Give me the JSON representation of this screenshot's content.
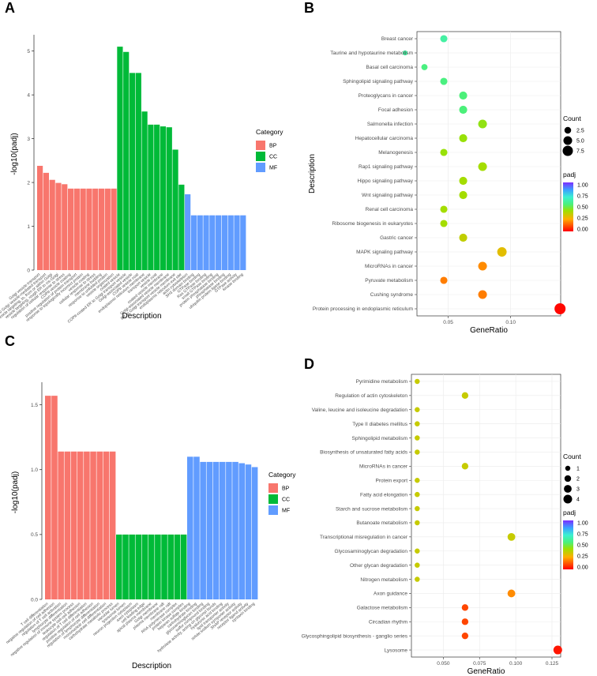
{
  "chart_data": [
    {
      "panel": "A",
      "type": "bar",
      "xlabel": "Description",
      "ylabel": "-log10(padj)",
      "ylim": [
        0,
        5.3
      ],
      "yticks": [
        0,
        1,
        2,
        3,
        4,
        5
      ],
      "legend": {
        "title": "Category",
        "position": "right",
        "entries": [
          {
            "name": "BP",
            "color": "#f8766d"
          },
          {
            "name": "CC",
            "color": "#00ba38"
          },
          {
            "name": "MF",
            "color": "#619cff"
          }
        ]
      },
      "bars": [
        {
          "label": "Golgi vesicle transport",
          "value": 2.38,
          "category": "BP"
        },
        {
          "label": "ER to Golgi vesicle-mediated transport",
          "value": 2.22,
          "category": "BP"
        },
        {
          "label": "vesicle targeting, to, from or within Golgi",
          "value": 2.06,
          "category": "BP"
        },
        {
          "label": "vesicle targeting, rough ER to cis-Golgi",
          "value": 1.99,
          "category": "BP"
        },
        {
          "label": "regulation of cellular response to stress",
          "value": 1.96,
          "category": "BP"
        },
        {
          "label": "COPII vesicle coating",
          "value": 1.86,
          "category": "BP"
        },
        {
          "label": "positive regulation of protein transport",
          "value": 1.86,
          "category": "BP"
        },
        {
          "label": "response to topologically incorrect protein",
          "value": 1.86,
          "category": "BP"
        },
        {
          "label": "vesicle coating",
          "value": 1.86,
          "category": "BP"
        },
        {
          "label": "cellular response to stress",
          "value": 1.86,
          "category": "BP"
        },
        {
          "label": "membrane budding",
          "value": 1.86,
          "category": "BP"
        },
        {
          "label": "response to unfolded protein",
          "value": 1.86,
          "category": "BP"
        },
        {
          "label": "vesicle organization",
          "value": 1.86,
          "category": "BP"
        },
        {
          "label": "coated vesicle",
          "value": 5.1,
          "category": "CC"
        },
        {
          "label": "COPII-coated ER to Golgi transport vesicle",
          "value": 4.98,
          "category": "CC"
        },
        {
          "label": "Golgi-associated vesicle",
          "value": 4.5,
          "category": "CC"
        },
        {
          "label": "COPII vesicle coat",
          "value": 4.5,
          "category": "CC"
        },
        {
          "label": "endoplasmic reticulum membrane",
          "value": 3.62,
          "category": "CC"
        },
        {
          "label": "transport vesicle",
          "value": 3.32,
          "category": "CC"
        },
        {
          "label": "vesicle coat",
          "value": 3.32,
          "category": "CC"
        },
        {
          "label": "coated vesicle membrane",
          "value": 3.28,
          "category": "CC"
        },
        {
          "label": "Golgi-associated vesicle membrane",
          "value": 3.26,
          "category": "CC"
        },
        {
          "label": "ER to Golgi transport vesicle membrane",
          "value": 2.75,
          "category": "CC"
        },
        {
          "label": "endoplasmic reticulum exit site",
          "value": 1.95,
          "category": "CC"
        },
        {
          "label": "actin cytoskeleton",
          "value": 1.73,
          "category": "MF"
        },
        {
          "label": "SH3 domain binding",
          "value": 1.25,
          "category": "MF"
        },
        {
          "label": "GTPase binding",
          "value": 1.25,
          "category": "MF"
        },
        {
          "label": "Ras GTPase binding",
          "value": 1.25,
          "category": "MF"
        },
        {
          "label": "small GTPase binding",
          "value": 1.25,
          "category": "MF"
        },
        {
          "label": "protein phosphatase binding",
          "value": 1.25,
          "category": "MF"
        },
        {
          "label": "phosphatase binding",
          "value": 1.25,
          "category": "MF"
        },
        {
          "label": "ubiquitin protein ligase binding",
          "value": 1.25,
          "category": "MF"
        },
        {
          "label": "GTPase activity",
          "value": 1.25,
          "category": "MF"
        },
        {
          "label": "kinase binding",
          "value": 1.25,
          "category": "MF"
        }
      ]
    },
    {
      "panel": "B",
      "type": "scatter",
      "xlabel": "GeneRatio",
      "ylabel": "Description",
      "xlim": [
        0.025,
        0.14
      ],
      "xticks": [
        "0.05",
        "0.10"
      ],
      "xtick_values": [
        0.05,
        0.1
      ],
      "size_legend": {
        "title": "Count",
        "values": [
          2.5,
          5.0,
          7.5
        ],
        "labels": [
          "2.5",
          "5.0",
          "7.5"
        ]
      },
      "color_legend": {
        "title": "padj",
        "ticks": [
          "1.00",
          "0.75",
          "0.50",
          "0.25",
          "0.00"
        ],
        "low_color": "#ff0000",
        "high_color": "#7b2eff"
      },
      "points": [
        {
          "term": "Breast cancer",
          "ratio": 0.0465,
          "count": 3,
          "padj": 0.62
        },
        {
          "term": "Taurine and hypotaurine metabolism",
          "ratio": 0.0155,
          "count": 1,
          "padj": 0.62
        },
        {
          "term": "Basal cell carcinoma",
          "ratio": 0.031,
          "count": 2,
          "padj": 0.56
        },
        {
          "term": "Sphingolipid signaling pathway",
          "ratio": 0.0465,
          "count": 3,
          "padj": 0.56
        },
        {
          "term": "Proteoglycans in cancer",
          "ratio": 0.062,
          "count": 4,
          "padj": 0.55
        },
        {
          "term": "Focal adhesion",
          "ratio": 0.062,
          "count": 4,
          "padj": 0.55
        },
        {
          "term": "Salmonella infection",
          "ratio": 0.0775,
          "count": 5,
          "padj": 0.44
        },
        {
          "term": "Hepatocellular carcinoma",
          "ratio": 0.062,
          "count": 4,
          "padj": 0.43
        },
        {
          "term": "Melanogenesis",
          "ratio": 0.0465,
          "count": 3,
          "padj": 0.43
        },
        {
          "term": "Rap1 signaling pathway",
          "ratio": 0.0775,
          "count": 5,
          "padj": 0.41
        },
        {
          "term": "Hippo signaling pathway",
          "ratio": 0.062,
          "count": 4,
          "padj": 0.41
        },
        {
          "term": "Wnt signaling pathway",
          "ratio": 0.062,
          "count": 4,
          "padj": 0.41
        },
        {
          "term": "Renal cell carcinoma",
          "ratio": 0.0465,
          "count": 3,
          "padj": 0.41
        },
        {
          "term": "Ribosome biogenesis in eukaryotes",
          "ratio": 0.0465,
          "count": 3,
          "padj": 0.41
        },
        {
          "term": "Gastric cancer",
          "ratio": 0.062,
          "count": 4,
          "padj": 0.36
        },
        {
          "term": "MAPK signaling pathway",
          "ratio": 0.093,
          "count": 6,
          "padj": 0.3
        },
        {
          "term": "MicroRNAs in cancer",
          "ratio": 0.0775,
          "count": 5,
          "padj": 0.2
        },
        {
          "term": "Pyruvate metabolism",
          "ratio": 0.0465,
          "count": 3,
          "padj": 0.18
        },
        {
          "term": "Cushing syndrome",
          "ratio": 0.0775,
          "count": 5,
          "padj": 0.18
        },
        {
          "term": "Protein processing in endoplasmic reticulum",
          "ratio": 0.1395,
          "count": 9,
          "padj": 0.01
        }
      ]
    },
    {
      "panel": "C",
      "type": "bar",
      "xlabel": "Description",
      "ylabel": "-log10(padj)",
      "ylim": [
        0,
        1.65
      ],
      "yticks": [
        0.0,
        0.5,
        1.0,
        1.5
      ],
      "ytick_labels": [
        "0.0",
        "0.5",
        "1.0",
        "1.5"
      ],
      "legend": {
        "title": "Category",
        "position": "right",
        "entries": [
          {
            "name": "BP",
            "color": "#f8766d"
          },
          {
            "name": "CC",
            "color": "#00ba38"
          },
          {
            "name": "MF",
            "color": "#619cff"
          }
        ]
      },
      "bars": [
        {
          "label": "T cell differentiation",
          "value": 1.57,
          "category": "BP"
        },
        {
          "label": "negative regulation of cell adhesion",
          "value": 1.57,
          "category": "BP"
        },
        {
          "label": "regulation of T cell activation",
          "value": 1.14,
          "category": "BP"
        },
        {
          "label": "lymphocyte differentiation",
          "value": 1.14,
          "category": "BP"
        },
        {
          "label": "negative regulation of immune system process",
          "value": 1.14,
          "category": "BP"
        },
        {
          "label": "leukocyte cell-cell adhesion",
          "value": 1.14,
          "category": "BP"
        },
        {
          "label": "regulation of T cell differentiation",
          "value": 1.14,
          "category": "BP"
        },
        {
          "label": "positive regulation of cell adhesion",
          "value": 1.14,
          "category": "BP"
        },
        {
          "label": "regulation of lymphocyte differentiation",
          "value": 1.14,
          "category": "BP"
        },
        {
          "label": "mononuclear cell differentiation",
          "value": 1.14,
          "category": "BP"
        },
        {
          "label": "carbohydrate metabolic process",
          "value": 1.14,
          "category": "BP"
        },
        {
          "label": "vacuolar lumen",
          "value": 0.5,
          "category": "CC"
        },
        {
          "label": "lysosomal lumen",
          "value": 0.5,
          "category": "CC"
        },
        {
          "label": "neuron projection cytoplasm",
          "value": 0.5,
          "category": "CC"
        },
        {
          "label": "axon cytoplasm",
          "value": 0.5,
          "category": "CC"
        },
        {
          "label": "cell leading edge",
          "value": 0.5,
          "category": "CC"
        },
        {
          "label": "apical plasma membrane",
          "value": 0.5,
          "category": "CC"
        },
        {
          "label": "Golgi membrane",
          "value": 0.5,
          "category": "CC"
        },
        {
          "label": "plasma membrane raft",
          "value": 0.5,
          "category": "CC"
        },
        {
          "label": "membrane raft",
          "value": 0.5,
          "category": "CC"
        },
        {
          "label": "RNA polymerase complex",
          "value": 0.5,
          "category": "CC"
        },
        {
          "label": "protein kinase complex",
          "value": 0.5,
          "category": "CC"
        },
        {
          "label": "heparan sulfate binding",
          "value": 1.1,
          "category": "MF"
        },
        {
          "label": "carbohydrate binding",
          "value": 1.1,
          "category": "MF"
        },
        {
          "label": "glycosaminoglycan binding",
          "value": 1.06,
          "category": "MF"
        },
        {
          "label": "sulfur compound binding",
          "value": 1.06,
          "category": "MF"
        },
        {
          "label": "hydrolase activity, acting on glycosyl bonds",
          "value": 1.06,
          "category": "MF"
        },
        {
          "label": "hyaluronic acid binding",
          "value": 1.06,
          "category": "MF"
        },
        {
          "label": "lipid transporter activity",
          "value": 1.06,
          "category": "MF"
        },
        {
          "label": "solute:sodium symporter activity",
          "value": 1.06,
          "category": "MF"
        },
        {
          "label": "SNAP receptor activity",
          "value": 1.05,
          "category": "MF"
        },
        {
          "label": "receptor ligand activity",
          "value": 1.04,
          "category": "MF"
        },
        {
          "label": "syntaxin binding",
          "value": 1.02,
          "category": "MF"
        }
      ]
    },
    {
      "panel": "D",
      "type": "scatter",
      "xlabel": "GeneRatio",
      "ylabel": "",
      "xlim": [
        0.028,
        0.131
      ],
      "xticks": [
        "0.050",
        "0.075",
        "0.100",
        "0.125"
      ],
      "xtick_values": [
        0.05,
        0.075,
        0.1,
        0.125
      ],
      "size_legend": {
        "title": "Count",
        "values": [
          1,
          2,
          3,
          4
        ],
        "labels": [
          "1",
          "2",
          "3",
          "4"
        ]
      },
      "color_legend": {
        "title": "padj",
        "ticks": [
          "1.00",
          "0.75",
          "0.50",
          "0.25",
          "0.00"
        ],
        "low_color": "#ff0000",
        "high_color": "#7b2eff"
      },
      "points": [
        {
          "term": "Pyrimidine metabolism",
          "ratio": 0.032,
          "count": 1,
          "padj": 0.35
        },
        {
          "term": "Regulation of actin cytoskeleton",
          "ratio": 0.065,
          "count": 2,
          "padj": 0.35
        },
        {
          "term": "Valine, leucine and isoleucine degradation",
          "ratio": 0.032,
          "count": 1,
          "padj": 0.35
        },
        {
          "term": "Type II diabetes mellitus",
          "ratio": 0.032,
          "count": 1,
          "padj": 0.35
        },
        {
          "term": "Sphingolipid metabolism",
          "ratio": 0.032,
          "count": 1,
          "padj": 0.35
        },
        {
          "term": "Biosynthesis of unsaturated fatty acids",
          "ratio": 0.032,
          "count": 1,
          "padj": 0.35
        },
        {
          "term": "MicroRNAs in cancer",
          "ratio": 0.065,
          "count": 2,
          "padj": 0.35
        },
        {
          "term": "Protein export",
          "ratio": 0.032,
          "count": 1,
          "padj": 0.35
        },
        {
          "term": "Fatty acid elongation",
          "ratio": 0.032,
          "count": 1,
          "padj": 0.35
        },
        {
          "term": "Starch and sucrose metabolism",
          "ratio": 0.032,
          "count": 1,
          "padj": 0.35
        },
        {
          "term": "Butanoate metabolism",
          "ratio": 0.032,
          "count": 1,
          "padj": 0.35
        },
        {
          "term": "Transcriptional misregulation in cancer",
          "ratio": 0.097,
          "count": 3,
          "padj": 0.35
        },
        {
          "term": "Glycosaminoglycan degradation",
          "ratio": 0.032,
          "count": 1,
          "padj": 0.35
        },
        {
          "term": "Other glycan degradation",
          "ratio": 0.032,
          "count": 1,
          "padj": 0.35
        },
        {
          "term": "Nitrogen metabolism",
          "ratio": 0.032,
          "count": 1,
          "padj": 0.35
        },
        {
          "term": "Axon guidance",
          "ratio": 0.097,
          "count": 3,
          "padj": 0.2
        },
        {
          "term": "Galactose metabolism",
          "ratio": 0.065,
          "count": 2,
          "padj": 0.1
        },
        {
          "term": "Circadian rhythm",
          "ratio": 0.065,
          "count": 2,
          "padj": 0.1
        },
        {
          "term": "Glycosphingolipid biosynthesis - ganglio series",
          "ratio": 0.065,
          "count": 2,
          "padj": 0.1
        },
        {
          "term": "Lysosome",
          "ratio": 0.129,
          "count": 4,
          "padj": 0.03
        }
      ]
    }
  ]
}
